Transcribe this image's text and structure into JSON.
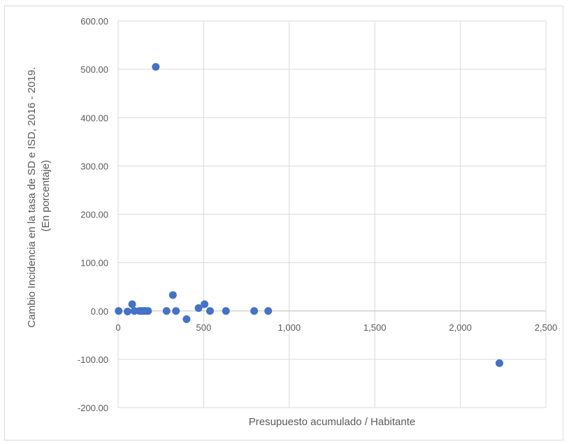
{
  "chart_data": {
    "type": "scatter",
    "title": "",
    "xlabel": "Presupuesto  acumulado / Habitante",
    "ylabel_lines": [
      "Cambio Incidencia en la tasa de SD e ISD, 2016 - 2019.",
      "(En porcentaje)"
    ],
    "xlim": [
      0,
      2500
    ],
    "ylim": [
      -200,
      600
    ],
    "x_ticks": [
      0,
      500,
      1000,
      1500,
      2000,
      2500
    ],
    "x_tick_labels": [
      "0",
      "500",
      "1,000",
      "1,500",
      "2,000",
      "2,500"
    ],
    "y_ticks": [
      600,
      500,
      400,
      300,
      200,
      100,
      0,
      -100,
      -200
    ],
    "y_tick_labels": [
      "600.00",
      "500.00",
      "400.00",
      "300.00",
      "200.00",
      "100.00",
      "0.00",
      "-100.00",
      "-200.00"
    ],
    "grid": true,
    "marker_color": "#4472C4",
    "points": [
      {
        "x": 3,
        "y": 0
      },
      {
        "x": 55,
        "y": -1
      },
      {
        "x": 82,
        "y": 14
      },
      {
        "x": 95,
        "y": 0
      },
      {
        "x": 125,
        "y": 0
      },
      {
        "x": 138,
        "y": 0
      },
      {
        "x": 150,
        "y": 0
      },
      {
        "x": 160,
        "y": 0
      },
      {
        "x": 175,
        "y": 0
      },
      {
        "x": 220,
        "y": 505
      },
      {
        "x": 283,
        "y": 0
      },
      {
        "x": 320,
        "y": 33
      },
      {
        "x": 338,
        "y": 0
      },
      {
        "x": 400,
        "y": -17
      },
      {
        "x": 470,
        "y": 6
      },
      {
        "x": 505,
        "y": 14
      },
      {
        "x": 537,
        "y": 0
      },
      {
        "x": 630,
        "y": 0
      },
      {
        "x": 795,
        "y": 0
      },
      {
        "x": 877,
        "y": 0
      },
      {
        "x": 2228,
        "y": -108
      }
    ]
  }
}
